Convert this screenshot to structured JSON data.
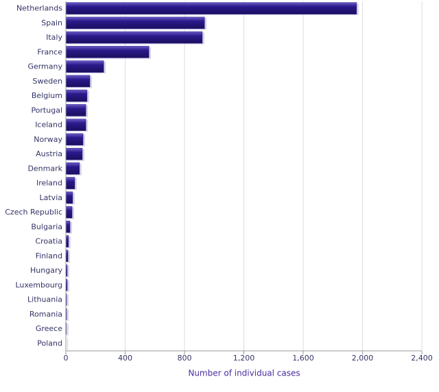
{
  "chart_data": {
    "type": "barh",
    "x_label": "Number of individual cases",
    "categories": [
      "Netherlands",
      "Spain",
      "Italy",
      "France",
      "Germany",
      "Sweden",
      "Belgium",
      "Portugal",
      "Iceland",
      "Norway",
      "Austria",
      "Denmark",
      "Ireland",
      "Latvia",
      "Czech Republic",
      "Bulgaria",
      "Croatia",
      "Finland",
      "Hungary",
      "Luxembourg",
      "Lithuania",
      "Romania",
      "Greece",
      "Poland"
    ],
    "values": [
      1960,
      935,
      920,
      560,
      255,
      162,
      143,
      135,
      135,
      116,
      111,
      92,
      60,
      46,
      42,
      28,
      18,
      14,
      9,
      9,
      5,
      5,
      4,
      1
    ],
    "color": "#2b1a8c",
    "xlim": [
      0,
      2400
    ],
    "xticks": [
      0,
      400,
      800,
      {
        "value": 1200,
        "label": "1,200"
      },
      {
        "value": 1600,
        "label": "1,600"
      },
      {
        "value": 2000,
        "label": "2,000"
      },
      {
        "value": 2400,
        "label": "2,400"
      }
    ],
    "grid": true
  }
}
